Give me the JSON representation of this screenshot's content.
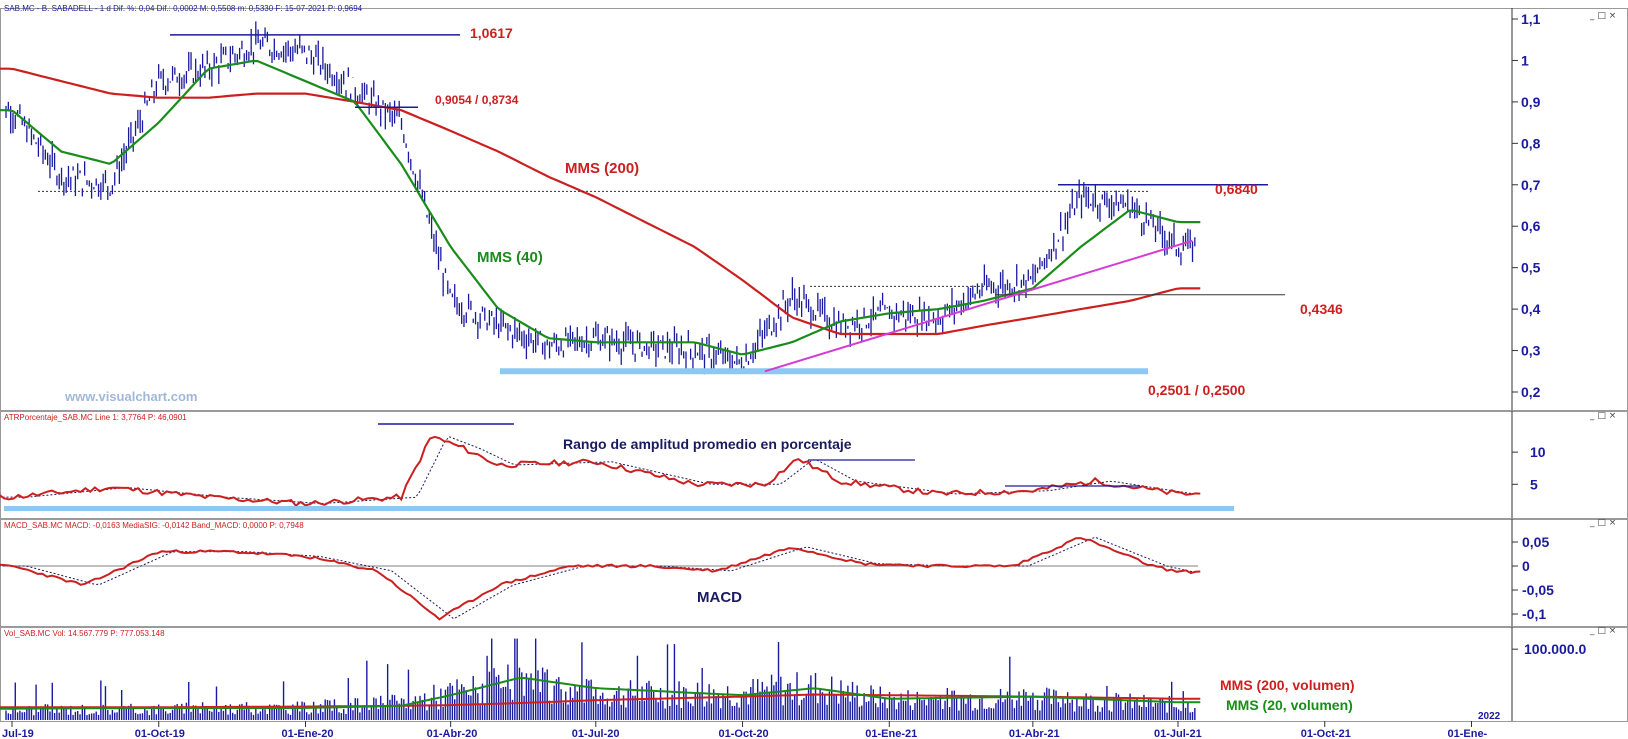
{
  "chart_data": [
    {
      "type": "line",
      "panel": "price",
      "header": "SAB.MC - B. SABADELL - 1 d Dif. %: 0,04 Dif.: 0,0002 M: 0,5508 m: 0,5330 F: 15-07-2021 P: 0,9694",
      "ylim": [
        0.2,
        1.1
      ],
      "yticks": [
        "1,1",
        "1",
        "0,9",
        "0,8",
        "0,7",
        "0,6",
        "0,5",
        "0,4",
        "0,3",
        "0,2"
      ],
      "ytick_values": [
        1.1,
        1.0,
        0.9,
        0.8,
        0.7,
        0.6,
        0.5,
        0.4,
        0.3,
        0.2
      ],
      "x_dates": [
        "2019-07-01",
        "2019-08-01",
        "2019-09-01",
        "2019-10-01",
        "2019-11-01",
        "2019-12-01",
        "2020-01-01",
        "2020-02-01",
        "2020-03-01",
        "2020-04-01",
        "2020-05-01",
        "2020-06-01",
        "2020-07-01",
        "2020-08-01",
        "2020-09-01",
        "2020-10-01",
        "2020-11-01",
        "2020-12-01",
        "2021-01-01",
        "2021-02-01",
        "2021-03-01",
        "2021-04-01",
        "2021-05-01",
        "2021-06-01",
        "2021-07-01"
      ],
      "close": [
        0.88,
        0.72,
        0.7,
        0.95,
        0.98,
        1.04,
        1.02,
        0.93,
        0.85,
        0.42,
        0.36,
        0.31,
        0.33,
        0.31,
        0.3,
        0.27,
        0.43,
        0.36,
        0.39,
        0.38,
        0.45,
        0.47,
        0.67,
        0.65,
        0.55
      ],
      "series": [
        {
          "name": "MMS (200)",
          "color": "#cc2020",
          "values": [
            0.98,
            0.95,
            0.92,
            0.91,
            0.91,
            0.92,
            0.92,
            0.9,
            0.88,
            0.83,
            0.78,
            0.72,
            0.67,
            0.61,
            0.55,
            0.47,
            0.38,
            0.34,
            0.34,
            0.34,
            0.36,
            0.38,
            0.4,
            0.42,
            0.45
          ]
        },
        {
          "name": "MMS (40)",
          "color": "#1a8c1a",
          "values": [
            0.88,
            0.78,
            0.75,
            0.85,
            0.98,
            1.0,
            0.95,
            0.9,
            0.75,
            0.55,
            0.4,
            0.33,
            0.32,
            0.32,
            0.32,
            0.29,
            0.32,
            0.37,
            0.39,
            0.4,
            0.42,
            0.45,
            0.55,
            0.64,
            0.61
          ]
        }
      ],
      "annotations": [
        {
          "text": "1,0617",
          "value": 1.0617,
          "color": "#cc2020"
        },
        {
          "text": "0,9054 / 0,8734",
          "value": 0.9054,
          "color": "#cc2020"
        },
        {
          "text": "MMS (200)",
          "color": "#cc2020"
        },
        {
          "text": "MMS (40)",
          "color": "#1a8c1a"
        },
        {
          "text": "0,6840",
          "value": 0.684,
          "color": "#cc2020"
        },
        {
          "text": "0,4346",
          "value": 0.4346,
          "color": "#cc2020"
        },
        {
          "text": "0,2501 / 0,2500",
          "value": 0.2501,
          "color": "#cc2020"
        }
      ],
      "support_trend": {
        "from": [
          "2020-10-15",
          0.25
        ],
        "to": [
          "2021-07-10",
          0.565
        ],
        "color": "#d63ad6"
      },
      "resistance_dotted": 0.684,
      "watermark": "www.visualchart.com"
    },
    {
      "type": "line",
      "panel": "atr",
      "header": "ATRPorcentaje_SAB.MC Line 1: 3,7764 P: 46,0901",
      "title": "Rango de amplitud promedio en porcentaje",
      "ylim": [
        1,
        15
      ],
      "yticks": [
        "10",
        "5"
      ],
      "ytick_values": [
        10,
        5
      ],
      "x_dates": [
        "2019-07-01",
        "2019-09-01",
        "2019-11-01",
        "2020-01-01",
        "2020-03-01",
        "2020-03-20",
        "2020-04-10",
        "2020-05-01",
        "2020-07-01",
        "2020-09-01",
        "2020-10-15",
        "2020-11-05",
        "2020-12-01",
        "2021-02-01",
        "2021-04-01",
        "2021-05-10",
        "2021-07-01"
      ],
      "series": [
        {
          "name": "",
          "color": "#cc2020",
          "values": [
            3.0,
            4.5,
            3.0,
            2.0,
            3.0,
            12.5,
            10.5,
            8.0,
            8.5,
            5.0,
            5.0,
            9.0,
            5.5,
            3.5,
            4.0,
            5.5,
            3.5
          ]
        }
      ]
    },
    {
      "type": "line",
      "panel": "macd",
      "header": "MACD_SAB.MC MACD: -0,0163 MediaSIG: -0,0142 Band_MACD: 0,0000 P: 0,7948",
      "title": "MACD",
      "ylim": [
        -0.125,
        0.065
      ],
      "yticks": [
        "0,05",
        "0",
        "-0,05",
        "-0,1"
      ],
      "ytick_values": [
        0.05,
        0,
        -0.05,
        -0.1
      ],
      "x_dates": [
        "2019-07-01",
        "2019-08-15",
        "2019-10-01",
        "2019-11-15",
        "2020-01-01",
        "2020-02-15",
        "2020-03-25",
        "2020-05-01",
        "2020-06-15",
        "2020-08-01",
        "2020-09-15",
        "2020-11-01",
        "2020-12-15",
        "2021-02-01",
        "2021-03-20",
        "2021-05-01",
        "2021-06-15",
        "2021-07-01"
      ],
      "series": [
        {
          "name": "",
          "color": "#cc2020",
          "values": [
            0.0,
            -0.04,
            0.03,
            0.03,
            0.02,
            -0.01,
            -0.11,
            -0.04,
            0.0,
            0.0,
            -0.01,
            0.04,
            0.005,
            0.0,
            0.0,
            0.06,
            0.0,
            -0.012
          ]
        }
      ]
    },
    {
      "type": "bar",
      "panel": "volume",
      "header": "Vol_SAB.MC Vol: 14.567.779 P: 777.053.148",
      "ylim": [
        0,
        120000000
      ],
      "yticks": [
        "100.000.0"
      ],
      "ytick_values": [
        100000000
      ],
      "series": [
        {
          "name": "MMS (200, volumen)",
          "color": "#cc2020"
        },
        {
          "name": "MMS (20, volumen)",
          "color": "#1a8c1a"
        }
      ]
    }
  ],
  "x_axis": {
    "labels": [
      "Jul-19",
      "01-Oct-19",
      "01-Ene-20",
      "01-Abr-20",
      "01-Jul-20",
      "01-Oct-20",
      "01-Ene-21",
      "01-Abr-21",
      "01-Jul-21",
      "01-Oct-21",
      "01-Ene-"
    ],
    "dates": [
      "2019-07-01",
      "2019-10-01",
      "2020-01-01",
      "2020-04-01",
      "2020-07-01",
      "2020-10-01",
      "2021-01-01",
      "2021-04-01",
      "2021-07-01",
      "2021-10-01",
      "2022-01-01"
    ],
    "year_marker": "2022"
  },
  "window_buttons": "_ □ ×",
  "colors": {
    "bars": "#1a1aa0",
    "axis_text": "#1a1aa0",
    "grid": "#666666",
    "band": "#8ec8f0"
  }
}
